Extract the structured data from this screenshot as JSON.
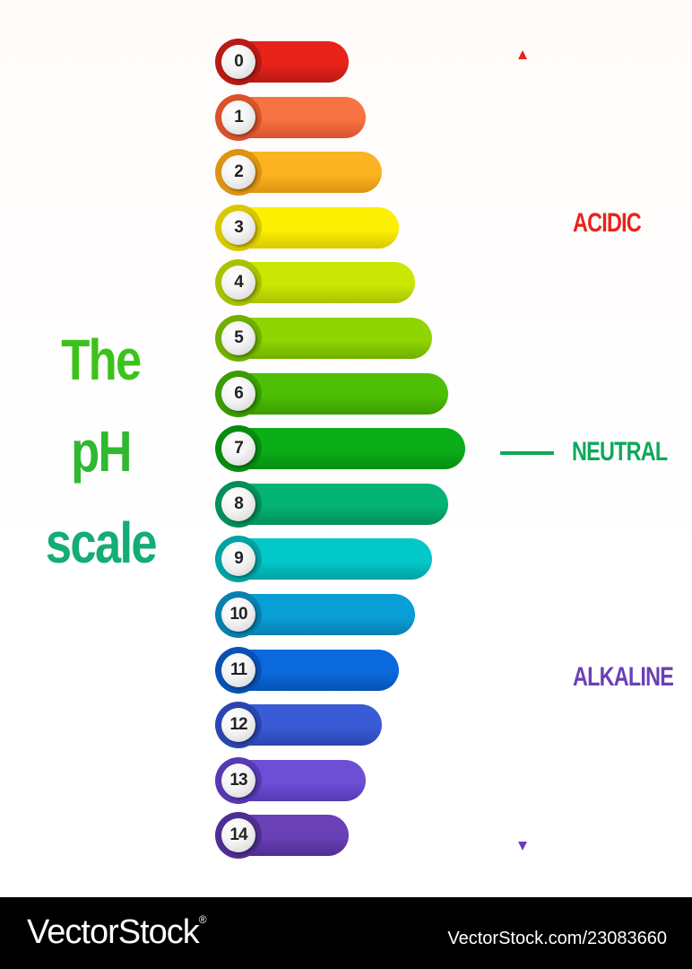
{
  "title": {
    "line1": "The",
    "line2": "pH",
    "line3": "scale",
    "colors": [
      "#3cc31a",
      "#30b830",
      "#13ad75"
    ]
  },
  "levels": [
    {
      "value": "0",
      "color": "#e8231a",
      "dark": "#b81a14"
    },
    {
      "value": "1",
      "color": "#f77341",
      "dark": "#d9532b"
    },
    {
      "value": "2",
      "color": "#fbb321",
      "dark": "#dd9410"
    },
    {
      "value": "3",
      "color": "#fdef02",
      "dark": "#d9c800"
    },
    {
      "value": "4",
      "color": "#cae703",
      "dark": "#a8c200"
    },
    {
      "value": "5",
      "color": "#90d402",
      "dark": "#6fb000"
    },
    {
      "value": "6",
      "color": "#4dbf04",
      "dark": "#3a9c00"
    },
    {
      "value": "7",
      "color": "#0bae18",
      "dark": "#078c10"
    },
    {
      "value": "8",
      "color": "#03b374",
      "dark": "#028f5b"
    },
    {
      "value": "9",
      "color": "#03c8c8",
      "dark": "#02a2a3"
    },
    {
      "value": "10",
      "color": "#0a9ed6",
      "dark": "#0780b0"
    },
    {
      "value": "11",
      "color": "#0a69dc",
      "dark": "#0752b4"
    },
    {
      "value": "12",
      "color": "#3a5bd6",
      "dark": "#2b45b0"
    },
    {
      "value": "13",
      "color": "#6d4fd6",
      "dark": "#553ab2"
    },
    {
      "value": "14",
      "color": "#6a40b6",
      "dark": "#4f2e92"
    }
  ],
  "zones": {
    "acidic": {
      "label": "ACIDIC",
      "color": "#e8231a"
    },
    "neutral": {
      "label": "NEUTRAL",
      "color": "#0fa85a"
    },
    "alkaline": {
      "label": "ALKALINE",
      "color": "#6a40b6"
    }
  },
  "footer": {
    "brand": "VectorStock",
    "registered": "®",
    "image_id": "VectorStock.com/23083660"
  }
}
